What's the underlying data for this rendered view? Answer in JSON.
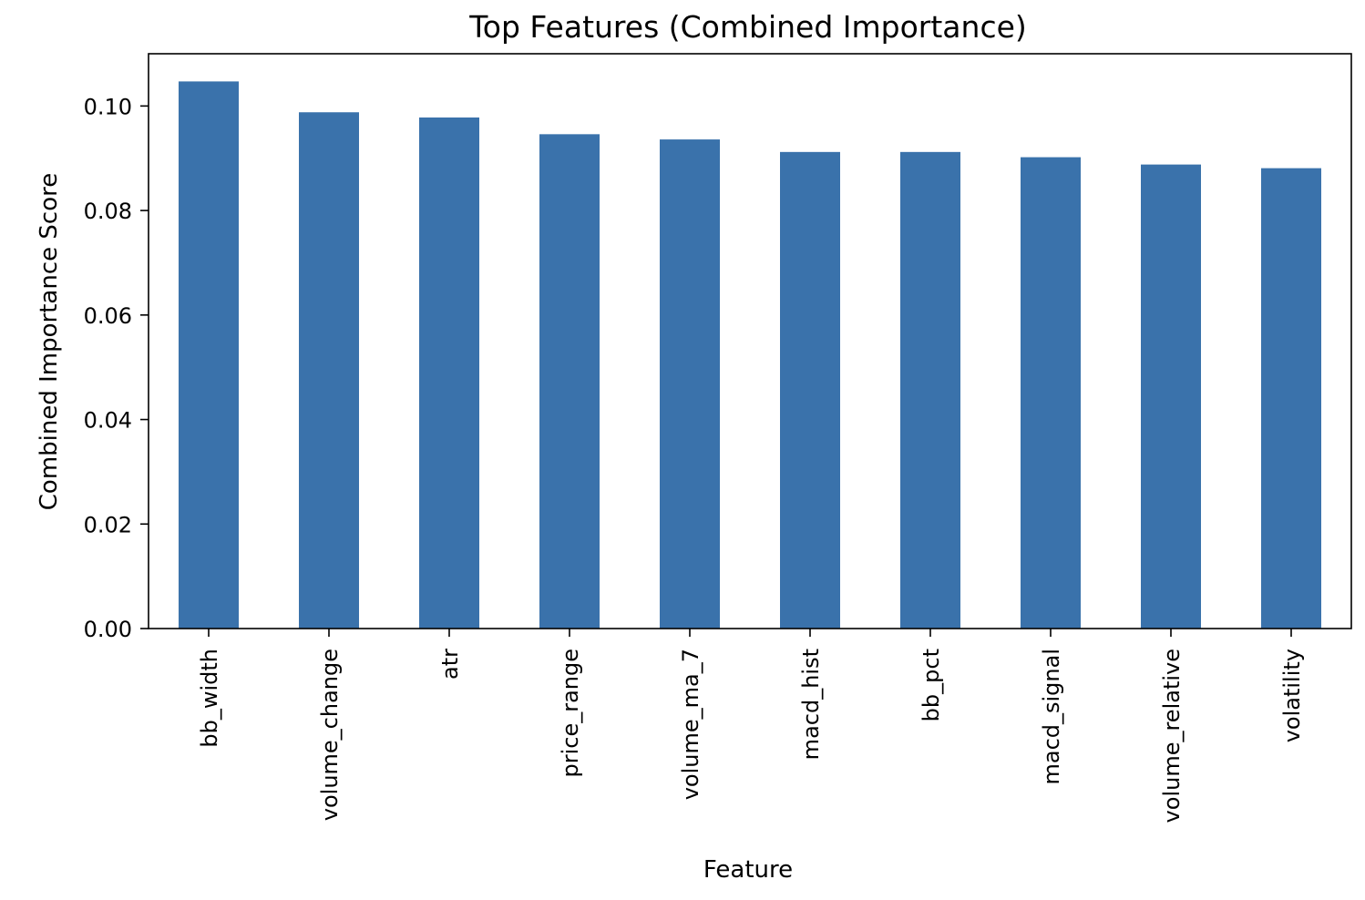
{
  "chart_data": {
    "type": "bar",
    "title": "Top Features (Combined Importance)",
    "xlabel": "Feature",
    "ylabel": "Combined Importance Score",
    "categories": [
      "bb_width",
      "volume_change",
      "atr",
      "price_range",
      "volume_ma_7",
      "macd_hist",
      "bb_pct",
      "macd_signal",
      "volume_relative",
      "volatility"
    ],
    "values": [
      0.1047,
      0.0988,
      0.0978,
      0.0946,
      0.0936,
      0.0912,
      0.0912,
      0.0902,
      0.0888,
      0.0881
    ],
    "ylim": [
      0,
      0.11
    ],
    "yticks": [
      0.0,
      0.02,
      0.04,
      0.06,
      0.08,
      0.1
    ],
    "ytick_labels": [
      "0.00",
      "0.02",
      "0.04",
      "0.06",
      "0.08",
      "0.10"
    ],
    "bar_color": "#3a72ab",
    "grid": false,
    "legend": "none"
  }
}
